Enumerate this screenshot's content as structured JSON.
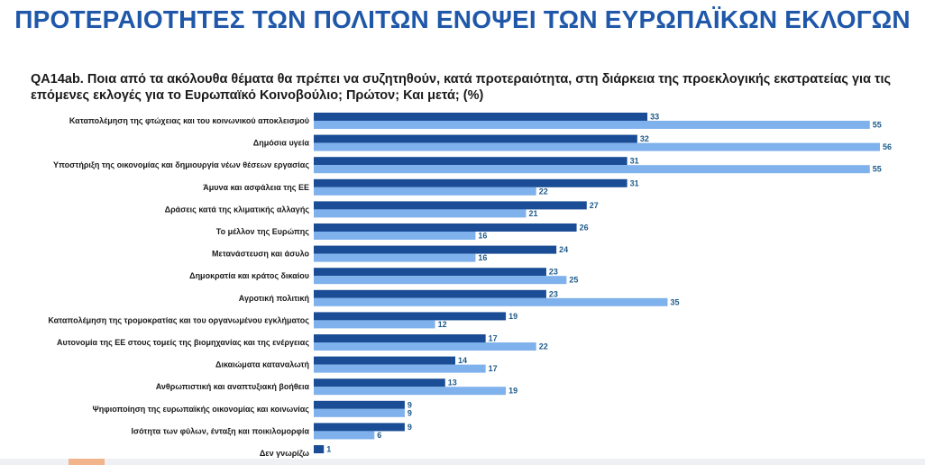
{
  "header": {
    "title": "ΠΡΟΤΕΡΑΙΟΤΗΤΕΣ ΤΩΝ ΠΟΛΙΤΩΝ ΕΝΟΨΕΙ ΤΩΝ ΕΥΡΩΠΑΪΚΩΝ ΕΚΛΟΓΩΝ",
    "question": "QA14ab. Ποια από τα ακόλουθα θέματα θα πρέπει να συζητηθούν, κατά προτεραιότητα, στη διάρκεια της προεκλογικής εκστρατείας για τις επόμενες εκλογές για το Ευρωπαϊκό Κοινοβούλιο; Πρώτον; Και μετά; (%)"
  },
  "colors": {
    "title": "#1f57a9",
    "series_dark": "#1a4d96",
    "series_light": "#7fb1ec",
    "value_label": "#1d5a8a"
  },
  "chart_data": {
    "type": "bar",
    "orientation": "horizontal",
    "title": "QA14ab. Ποια από τα ακόλουθα θέματα θα πρέπει να συζητηθούν, κατά προτεραιότητα, στη διάρκεια της προεκλογικής εκστρατείας για τις επόμενες εκλογές για το Ευρωπαϊκό Κοινοβούλιο; Πρώτον; Και μετά; (%)",
    "xlim": [
      0,
      56
    ],
    "grid": false,
    "categories": [
      "Καταπολέμηση της φτώχειας και του κοινωνικού αποκλεισμού",
      "Δημόσια υγεία",
      "Υποστήριξη της οικονομίας και δημιουργία νέων θέσεων εργασίας",
      "Άμυνα και ασφάλεια της ΕΕ",
      "Δράσεις κατά της κλιματικής αλλαγής",
      "Το μέλλον της Ευρώπης",
      "Μετανάστευση και άσυλο",
      "Δημοκρατία και κράτος δικαίου",
      "Αγροτική πολιτική",
      "Καταπολέμηση της τρομοκρατίας και του οργανωμένου εγκλήματος",
      "Αυτονομία της ΕΕ στους τομείς της βιομηχανίας και της ενέργειας",
      "Δικαιώματα καταναλωτή",
      "Ανθρωπιστική και αναπτυξιακή βοήθεια",
      "Ψηφιοποίηση της ευρωπαϊκής οικονομίας και κοινωνίας",
      "Ισότητα των φύλων, ένταξη και ποικιλομορφία",
      "Δεν γνωρίζω"
    ],
    "series": [
      {
        "values": [
          33,
          32,
          31,
          31,
          27,
          26,
          24,
          23,
          23,
          19,
          17,
          14,
          13,
          9,
          9,
          1
        ]
      },
      {
        "values": [
          55,
          56,
          55,
          22,
          21,
          16,
          16,
          25,
          35,
          12,
          22,
          17,
          19,
          9,
          6,
          null
        ]
      }
    ]
  }
}
